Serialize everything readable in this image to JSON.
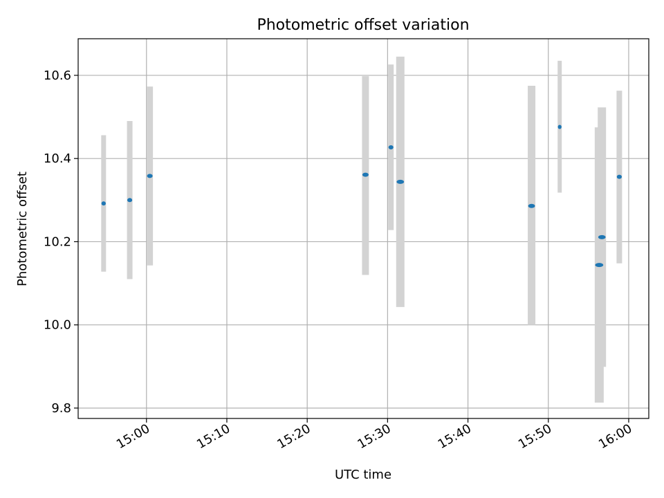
{
  "chart_data": {
    "type": "scatter",
    "title": "Photometric offset variation",
    "xlabel": "UTC time",
    "ylabel": "Photometric offset",
    "xlim": [
      "14:51:30",
      "16:02:30"
    ],
    "ylim": [
      9.775,
      10.688
    ],
    "grid": true,
    "x_ticks": [
      "15:00",
      "15:10",
      "15:20",
      "15:30",
      "15:40",
      "15:50",
      "16:00"
    ],
    "y_ticks": [
      "9.8",
      "10.0",
      "10.2",
      "10.4",
      "10.6"
    ],
    "series": [
      {
        "marker_color": "#1f77b4",
        "errorbar_color": "#d3d3d3",
        "points": [
          {
            "x": "14:54:40",
            "y": 10.292,
            "y_low": 10.128,
            "y_high": 10.456
          },
          {
            "x": "14:57:55",
            "y": 10.3,
            "y_low": 10.11,
            "y_high": 10.49
          },
          {
            "x": "15:00:25",
            "y": 10.358,
            "y_low": 10.143,
            "y_high": 10.573
          },
          {
            "x": "15:27:15",
            "y": 10.361,
            "y_low": 10.12,
            "y_high": 10.598
          },
          {
            "x": "15:30:25",
            "y": 10.427,
            "y_low": 10.228,
            "y_high": 10.626
          },
          {
            "x": "15:31:35",
            "y": 10.344,
            "y_low": 10.043,
            "y_high": 10.645
          },
          {
            "x": "15:47:55",
            "y": 10.286,
            "y_low": 10.0,
            "y_high": 10.575
          },
          {
            "x": "15:51:25",
            "y": 10.476,
            "y_low": 10.318,
            "y_high": 10.635
          },
          {
            "x": "15:56:20",
            "y": 10.144,
            "y_low": 9.813,
            "y_high": 10.475
          },
          {
            "x": "15:56:40",
            "y": 10.211,
            "y_low": 9.899,
            "y_high": 10.523
          },
          {
            "x": "15:58:50",
            "y": 10.356,
            "y_low": 10.148,
            "y_high": 10.563
          }
        ]
      }
    ]
  }
}
